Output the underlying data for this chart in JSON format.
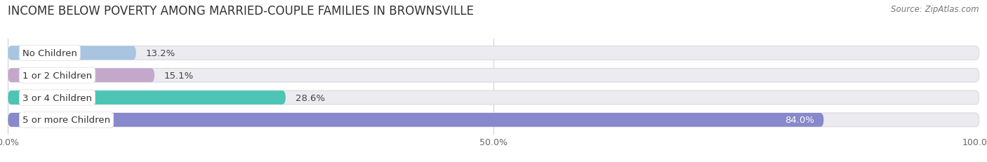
{
  "title": "INCOME BELOW POVERTY AMONG MARRIED-COUPLE FAMILIES IN BROWNSVILLE",
  "source": "Source: ZipAtlas.com",
  "categories": [
    "No Children",
    "1 or 2 Children",
    "3 or 4 Children",
    "5 or more Children"
  ],
  "values": [
    13.2,
    15.1,
    28.6,
    84.0
  ],
  "bar_colors": [
    "#a8c4e0",
    "#c4a8cc",
    "#4dc4b4",
    "#8888cc"
  ],
  "background_bar_color": "#ebebf0",
  "background_bar_edge": "#d8d8e0",
  "xlim": [
    0,
    100
  ],
  "xticks": [
    0,
    50,
    100
  ],
  "xticklabels": [
    "0.0%",
    "50.0%",
    "100.0%"
  ],
  "title_fontsize": 12,
  "source_fontsize": 8.5,
  "label_fontsize": 9.5,
  "value_fontsize": 9.5,
  "bar_height": 0.62,
  "fig_bg_color": "#ffffff",
  "grid_color": "#cccccc",
  "value_label_inside_threshold": 70
}
